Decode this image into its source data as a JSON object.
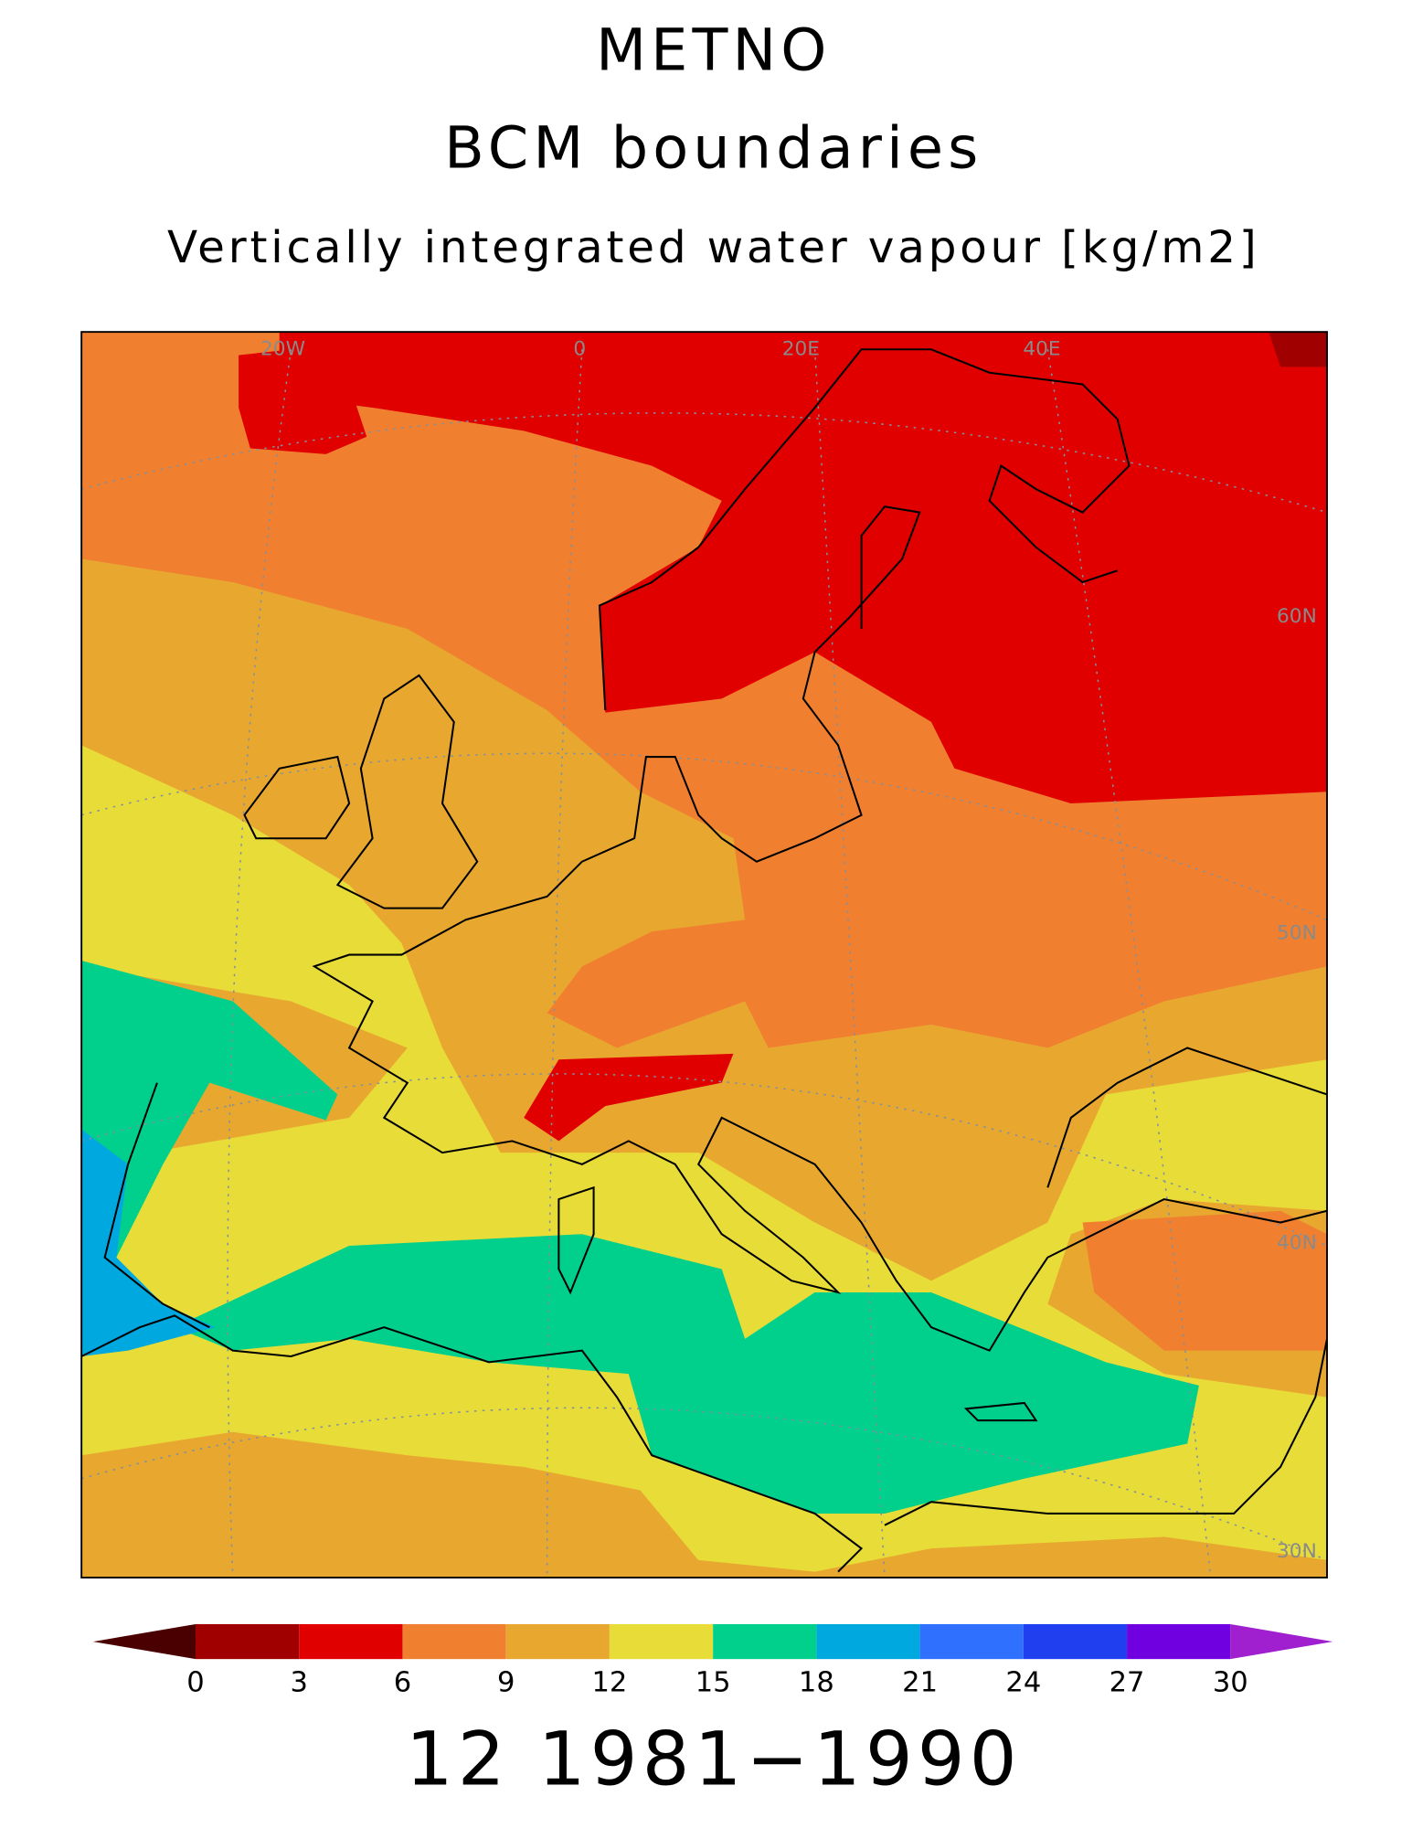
{
  "map": {
    "title": "METNO",
    "subtitle": "BCM boundaries",
    "variable": "Vertically integrated water vapour [kg/m2]",
    "graticule_labels": {
      "lon": [
        "20W",
        "0",
        "20E",
        "40E"
      ],
      "lat": [
        "60N",
        "50N",
        "40N",
        "30N"
      ]
    },
    "colorbar": {
      "ticks": [
        0,
        3,
        6,
        9,
        12,
        15,
        18,
        21,
        24,
        27,
        30
      ],
      "colors": [
        "#4a0000",
        "#a00000",
        "#e00000",
        "#f08030",
        "#e8a830",
        "#e8dc38",
        "#00d08c",
        "#00a8e0",
        "#3070ff",
        "#2040f0",
        "#7000e0",
        "#a020d0"
      ]
    },
    "footer": "12 1981−1990"
  }
}
